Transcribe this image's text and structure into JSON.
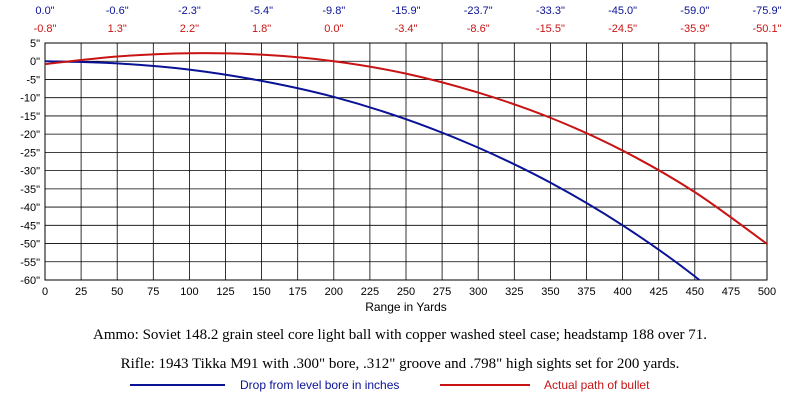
{
  "chart_data": {
    "type": "line",
    "xlabel": "Range in Yards",
    "ylabel": "",
    "xlim": [
      0,
      500
    ],
    "ylim": [
      -60,
      5
    ],
    "x_ticks": [
      "0",
      "25",
      "50",
      "75",
      "100",
      "125",
      "150",
      "175",
      "200",
      "225",
      "250",
      "275",
      "300",
      "325",
      "350",
      "375",
      "400",
      "425",
      "450",
      "475",
      "500"
    ],
    "y_ticks": [
      "5\"",
      "0\"",
      "-5\"",
      "-10\"",
      "-15\"",
      "-20\"",
      "-25\"",
      "-30\"",
      "-35\"",
      "-40\"",
      "-45\"",
      "-50\"",
      "-55\"",
      "-60\""
    ],
    "grid": true,
    "top_labels_blue": [
      "0.0\"",
      "-0.6\"",
      "-2.3\"",
      "-5.4\"",
      "-9.8\"",
      "-15.9\"",
      "-23.7\"",
      "-33.3\"",
      "-45.0\"",
      "-59.0\"",
      "-75.9\""
    ],
    "top_labels_red": [
      "-0.8\"",
      "1.3\"",
      "2.2\"",
      "1.8\"",
      "0.0\"",
      "-3.4\"",
      "-8.6\"",
      "-15.5\"",
      "-24.5\"",
      "-35.9\"",
      "-50.1\""
    ],
    "x": [
      0,
      50,
      100,
      150,
      200,
      250,
      300,
      350,
      400,
      450,
      500
    ],
    "series": [
      {
        "name": "Drop from level bore in inches",
        "color": "#0a1296",
        "values": [
          0.0,
          -0.6,
          -2.3,
          -5.4,
          -9.8,
          -15.9,
          -23.7,
          -33.3,
          -45.0,
          -59.0,
          -75.9
        ]
      },
      {
        "name": "Actual path of bullet",
        "color": "#c81414",
        "values": [
          -0.8,
          1.3,
          2.2,
          1.8,
          0.0,
          -3.4,
          -8.6,
          -15.5,
          -24.5,
          -35.9,
          -50.1
        ]
      }
    ],
    "legend_placement": "bottom"
  },
  "captions": {
    "ammo": "Ammo:  Soviet 148.2 grain steel core light ball with copper washed steel case; headstamp 188 over 71.",
    "rifle": "Rifle:  1943 Tikka M91 with .300\" bore, .312\" groove and .798\" high sights set for 200 yards."
  }
}
